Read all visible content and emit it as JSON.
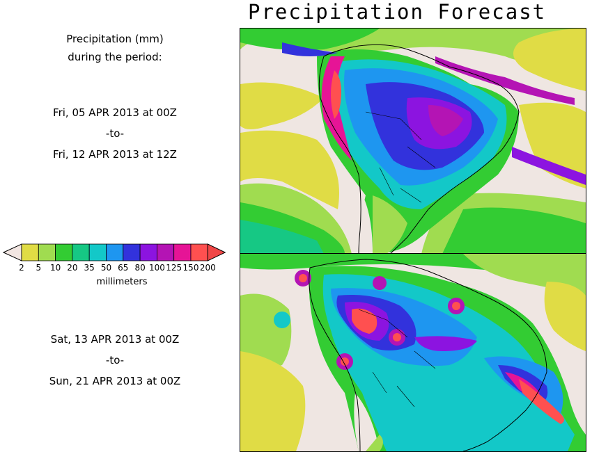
{
  "title": "Precipitation Forecast",
  "legend_heading": [
    "Precipitation (mm)",
    "during the period:"
  ],
  "period1": {
    "start": "Fri, 05 APR 2013 at 00Z",
    "sep": "-to-",
    "end": "Fri, 12 APR 2013 at 12Z"
  },
  "period2": {
    "start": "Sat, 13 APR 2013 at 00Z",
    "sep": "-to-",
    "end": "Sun, 21 APR 2013 at 00Z"
  },
  "colorbar": {
    "unit": "millimeters",
    "ticks": [
      "2",
      "5",
      "10",
      "20",
      "35",
      "50",
      "65",
      "80",
      "100",
      "125",
      "150",
      "200"
    ],
    "colors": [
      "#f2e6e2",
      "#e0dc45",
      "#a0dc50",
      "#33cc33",
      "#16c884",
      "#13c8c8",
      "#1e96f0",
      "#3232dc",
      "#8c14e0",
      "#b414b4",
      "#e61496",
      "#ff5050",
      "#f04646"
    ]
  },
  "map_colors": {
    "background": "#efe6e2",
    "yellow": "#e0dc45",
    "lightgreen": "#a0dc50",
    "green": "#33cc33",
    "teal": "#16c884",
    "cyan": "#13c8c8",
    "blue": "#1e96f0",
    "darkblue": "#3232dc",
    "purple": "#8c14e0",
    "magenta": "#b414b4",
    "pink": "#e61496",
    "red": "#ff5050"
  }
}
